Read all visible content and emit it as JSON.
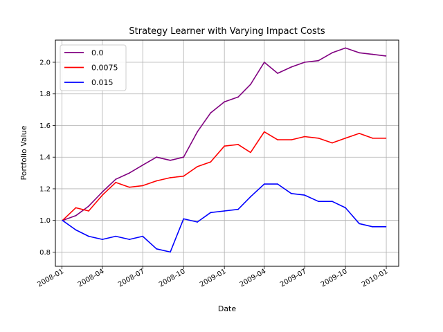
{
  "chart_data": {
    "type": "line",
    "title": "Strategy Learner with Varying Impact Costs",
    "xlabel": "Date",
    "ylabel": "Portfolio Value",
    "xlim": [
      "2007-12-17",
      "2010-01-29"
    ],
    "ylim": [
      0.71,
      2.14
    ],
    "grid": true,
    "legend_position": "top-left",
    "x_ticks": [
      "2008-01",
      "2008-04",
      "2008-07",
      "2008-10",
      "2009-01",
      "2009-04",
      "2009-07",
      "2009-10",
      "2010-01"
    ],
    "y_ticks": [
      0.8,
      1.0,
      1.2,
      1.4,
      1.6,
      1.8,
      2.0
    ],
    "y_tick_labels": [
      "0.8",
      "1.0",
      "1.2",
      "1.4",
      "1.6",
      "1.8",
      "2.0"
    ],
    "x": [
      "2008-01-02",
      "2008-02-01",
      "2008-03-01",
      "2008-04-01",
      "2008-05-01",
      "2008-06-01",
      "2008-07-01",
      "2008-08-01",
      "2008-09-01",
      "2008-10-01",
      "2008-11-01",
      "2008-12-01",
      "2009-01-01",
      "2009-02-01",
      "2009-03-01",
      "2009-04-01",
      "2009-05-01",
      "2009-06-01",
      "2009-07-01",
      "2009-08-01",
      "2009-09-01",
      "2009-10-01",
      "2009-11-01",
      "2009-12-01",
      "2009-12-31"
    ],
    "series": [
      {
        "name": "0.0",
        "color": "#800080",
        "values": [
          1.0,
          1.03,
          1.09,
          1.18,
          1.26,
          1.3,
          1.35,
          1.4,
          1.38,
          1.4,
          1.56,
          1.68,
          1.75,
          1.78,
          1.86,
          2.0,
          1.93,
          1.97,
          2.0,
          2.01,
          2.06,
          2.09,
          2.06,
          2.05,
          2.04
        ]
      },
      {
        "name": "0.0075",
        "color": "#ff0000",
        "values": [
          1.0,
          1.08,
          1.06,
          1.16,
          1.24,
          1.21,
          1.22,
          1.25,
          1.27,
          1.28,
          1.34,
          1.37,
          1.47,
          1.48,
          1.43,
          1.56,
          1.51,
          1.51,
          1.53,
          1.52,
          1.49,
          1.52,
          1.55,
          1.52,
          1.52
        ]
      },
      {
        "name": "0.015",
        "color": "#0000ff",
        "values": [
          1.0,
          0.94,
          0.9,
          0.88,
          0.9,
          0.88,
          0.9,
          0.82,
          0.8,
          1.01,
          0.99,
          1.05,
          1.06,
          1.07,
          1.15,
          1.23,
          1.23,
          1.17,
          1.16,
          1.12,
          1.12,
          1.08,
          0.98,
          0.96,
          0.96
        ]
      }
    ]
  }
}
